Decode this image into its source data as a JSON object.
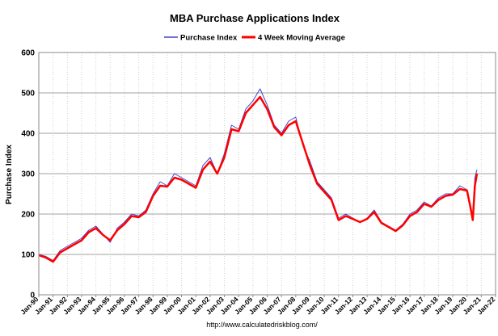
{
  "chart_data": {
    "type": "line",
    "title": "MBA Purchase Applications Index",
    "ylabel": "Purchase Index",
    "xlabel": "",
    "source": "http://www.calculatedriskblog.com/",
    "ylim": [
      0,
      600
    ],
    "yticks": [
      "0",
      "100",
      "200",
      "300",
      "400",
      "500",
      "600"
    ],
    "grid": true,
    "legend_position": "top-center",
    "x_tick_labels": [
      "Jan-90",
      "Jan-91",
      "Jan-92",
      "Jan-93",
      "Jan-94",
      "Jan-95",
      "Jan-96",
      "Jan-97",
      "Jan-98",
      "Jan-99",
      "Jan-00",
      "Jan-01",
      "Jan-02",
      "Jan-03",
      "Jan-04",
      "Jan-05",
      "Jan-06",
      "Jan-07",
      "Jan-08",
      "Jan-09",
      "Jan-10",
      "Jan-11",
      "Jan-12",
      "Jan-13",
      "Jan-14",
      "Jan-15",
      "Jan-16",
      "Jan-17",
      "Jan-18",
      "Jan-19",
      "Jan-20",
      "Jan-21",
      "Jan-22"
    ],
    "x_year_start": 1990,
    "x_year_end": 2022,
    "series": [
      {
        "name": "Purchase Index",
        "color": "#4444cc",
        "x": [
          1990.0,
          1990.5,
          1991.0,
          1991.5,
          1992.0,
          1992.5,
          1993.0,
          1993.5,
          1994.0,
          1994.5,
          1995.0,
          1995.5,
          1996.0,
          1996.5,
          1997.0,
          1997.5,
          1998.0,
          1998.5,
          1999.0,
          1999.5,
          2000.0,
          2000.5,
          2001.0,
          2001.5,
          2002.0,
          2002.5,
          2003.0,
          2003.5,
          2004.0,
          2004.5,
          2005.0,
          2005.5,
          2006.0,
          2006.5,
          2007.0,
          2007.5,
          2008.0,
          2008.5,
          2009.0,
          2009.5,
          2010.0,
          2010.5,
          2011.0,
          2011.5,
          2012.0,
          2012.5,
          2013.0,
          2013.5,
          2014.0,
          2014.5,
          2015.0,
          2015.5,
          2016.0,
          2016.5,
          2017.0,
          2017.5,
          2018.0,
          2018.5,
          2019.0,
          2019.5,
          2020.0,
          2020.25,
          2020.4,
          2020.55,
          2020.7
        ],
        "values": [
          100,
          95,
          85,
          110,
          120,
          130,
          140,
          160,
          170,
          150,
          130,
          165,
          180,
          200,
          195,
          210,
          250,
          280,
          270,
          300,
          290,
          280,
          270,
          320,
          340,
          300,
          350,
          420,
          410,
          460,
          480,
          510,
          470,
          420,
          400,
          430,
          440,
          370,
          330,
          280,
          260,
          240,
          190,
          200,
          190,
          180,
          190,
          210,
          180,
          170,
          160,
          175,
          200,
          210,
          230,
          220,
          240,
          250,
          250,
          270,
          260,
          210,
          190,
          290,
          310
        ]
      },
      {
        "name": "4 Week Moving Average",
        "color": "#ff0000",
        "x": [
          1990.0,
          1990.5,
          1991.0,
          1991.5,
          1992.0,
          1992.5,
          1993.0,
          1993.5,
          1994.0,
          1994.5,
          1995.0,
          1995.5,
          1996.0,
          1996.5,
          1997.0,
          1997.5,
          1998.0,
          1998.5,
          1999.0,
          1999.5,
          2000.0,
          2000.5,
          2001.0,
          2001.5,
          2002.0,
          2002.5,
          2003.0,
          2003.5,
          2004.0,
          2004.5,
          2005.0,
          2005.5,
          2006.0,
          2006.5,
          2007.0,
          2007.5,
          2008.0,
          2008.5,
          2009.0,
          2009.5,
          2010.0,
          2010.5,
          2011.0,
          2011.5,
          2012.0,
          2012.5,
          2013.0,
          2013.5,
          2014.0,
          2014.5,
          2015.0,
          2015.5,
          2016.0,
          2016.5,
          2017.0,
          2017.5,
          2018.0,
          2018.5,
          2019.0,
          2019.5,
          2020.0,
          2020.25,
          2020.4,
          2020.55,
          2020.7
        ],
        "values": [
          98,
          92,
          82,
          105,
          115,
          125,
          135,
          155,
          165,
          148,
          135,
          160,
          175,
          195,
          192,
          205,
          245,
          270,
          268,
          290,
          285,
          275,
          265,
          310,
          330,
          300,
          340,
          410,
          405,
          450,
          470,
          490,
          460,
          415,
          395,
          420,
          430,
          375,
          320,
          275,
          255,
          235,
          185,
          195,
          188,
          180,
          188,
          205,
          178,
          168,
          158,
          172,
          195,
          205,
          225,
          218,
          235,
          245,
          248,
          262,
          258,
          215,
          185,
          270,
          300
        ]
      }
    ]
  }
}
